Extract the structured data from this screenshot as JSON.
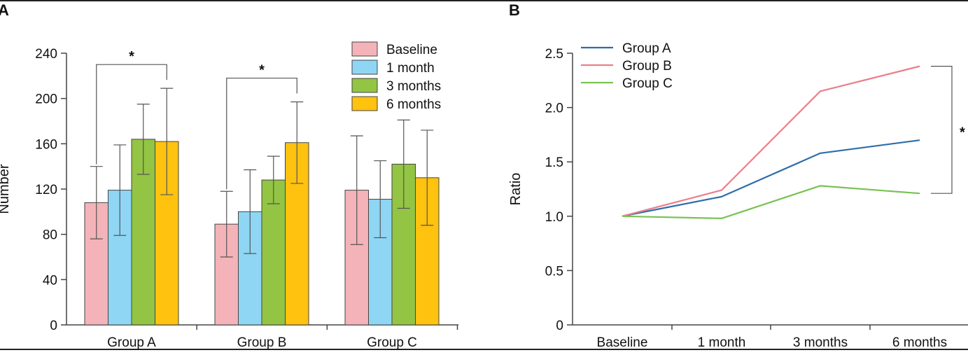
{
  "chart_data": [
    {
      "panel": "A",
      "type": "bar",
      "title": "",
      "xlabel": "",
      "ylabel": "Number",
      "ylim": [
        0,
        240
      ],
      "yticks": [
        "0",
        "40",
        "80",
        "120",
        "160",
        "200",
        "240"
      ],
      "categories": [
        "Group A",
        "Group B",
        "Group C"
      ],
      "series": [
        {
          "name": "Baseline",
          "color": "#f4b3b8",
          "values": [
            108,
            89,
            119
          ],
          "err": [
            32,
            29,
            48
          ]
        },
        {
          "name": "1 month",
          "color": "#8fd6f4",
          "values": [
            119,
            100,
            111
          ],
          "err": [
            40,
            37,
            34
          ]
        },
        {
          "name": "3 months",
          "color": "#93c444",
          "values": [
            164,
            128,
            142
          ],
          "err": [
            31,
            21,
            39
          ]
        },
        {
          "name": "6 months",
          "color": "#ffc20e",
          "values": [
            162,
            161,
            130
          ],
          "err": [
            47,
            36,
            42
          ]
        }
      ],
      "legend_position": "top-right",
      "annotations": [
        {
          "text": "*",
          "category": "Group A",
          "from_series": "Baseline",
          "to_series": "6 months",
          "bracket_level": 230
        },
        {
          "text": "*",
          "category": "Group B",
          "from_series": "Baseline",
          "to_series": "6 months",
          "bracket_level": 218
        }
      ]
    },
    {
      "panel": "B",
      "type": "line",
      "title": "",
      "xlabel": "",
      "ylabel": "Ratio",
      "ylim": [
        0,
        2.5
      ],
      "yticks": [
        "0",
        "0.5",
        "1.0",
        "1.5",
        "2.0",
        "2.5"
      ],
      "categories": [
        "Baseline",
        "1 month",
        "3 months",
        "6 months"
      ],
      "series": [
        {
          "name": "Group A",
          "color": "#2e6dab",
          "values": [
            1.0,
            1.18,
            1.58,
            1.7
          ]
        },
        {
          "name": "Group B",
          "color": "#ea7f8c",
          "values": [
            1.0,
            1.24,
            2.15,
            2.38
          ]
        },
        {
          "name": "Group C",
          "color": "#78c354",
          "values": [
            1.0,
            0.98,
            1.28,
            1.21
          ]
        }
      ],
      "legend_position": "top-left",
      "annotations": [
        {
          "text": "*",
          "between": [
            "Group B",
            "Group C"
          ],
          "at": "6 months"
        }
      ]
    }
  ]
}
